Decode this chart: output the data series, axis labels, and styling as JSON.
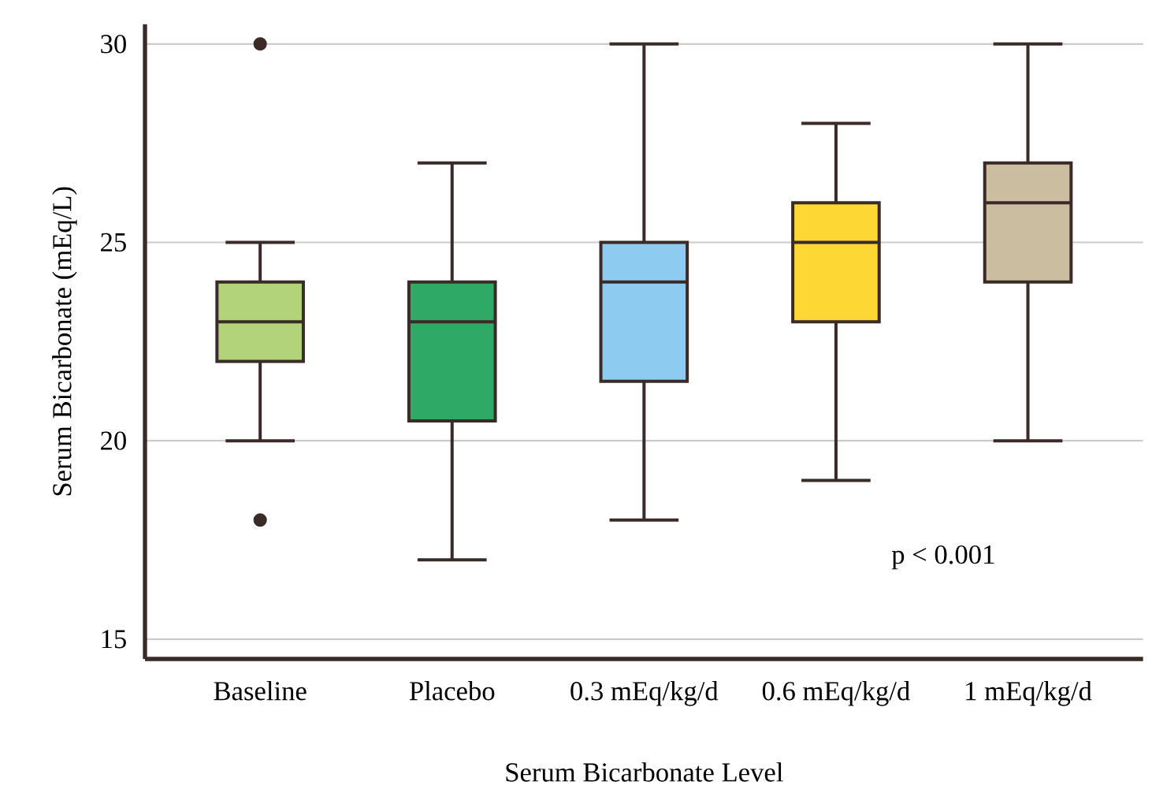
{
  "chart_data": {
    "type": "box",
    "xlabel": "Serum Bicarbonate Level",
    "ylabel": "Serum Bicarbonate (mEq/L)",
    "categories": [
      "Baseline",
      "Placebo",
      "0.3 mEq/kg/d",
      "0.6 mEq/kg/d",
      "1 mEq/kg/d"
    ],
    "boxes": [
      {
        "low": 20,
        "q1": 22,
        "median": 23,
        "q3": 24,
        "high": 25,
        "outliers": [
          30,
          18
        ]
      },
      {
        "low": 17,
        "q1": 20.5,
        "median": 23,
        "q3": 24,
        "high": 27
      },
      {
        "low": 18,
        "q1": 21.5,
        "median": 24,
        "q3": 25,
        "high": 30
      },
      {
        "low": 19,
        "q1": 23,
        "median": 25,
        "q3": 26,
        "high": 28
      },
      {
        "low": 20,
        "q1": 24,
        "median": 26,
        "q3": 27,
        "high": 30
      }
    ],
    "colors": [
      "#b3d37a",
      "#2eaa64",
      "#8ecbf0",
      "#fdd835",
      "#cbbda0"
    ],
    "ylim": [
      14.5,
      30.5
    ],
    "yticks": [
      15,
      20,
      25,
      30
    ],
    "grid": "y",
    "annotations": [
      "p < 0.001"
    ]
  }
}
